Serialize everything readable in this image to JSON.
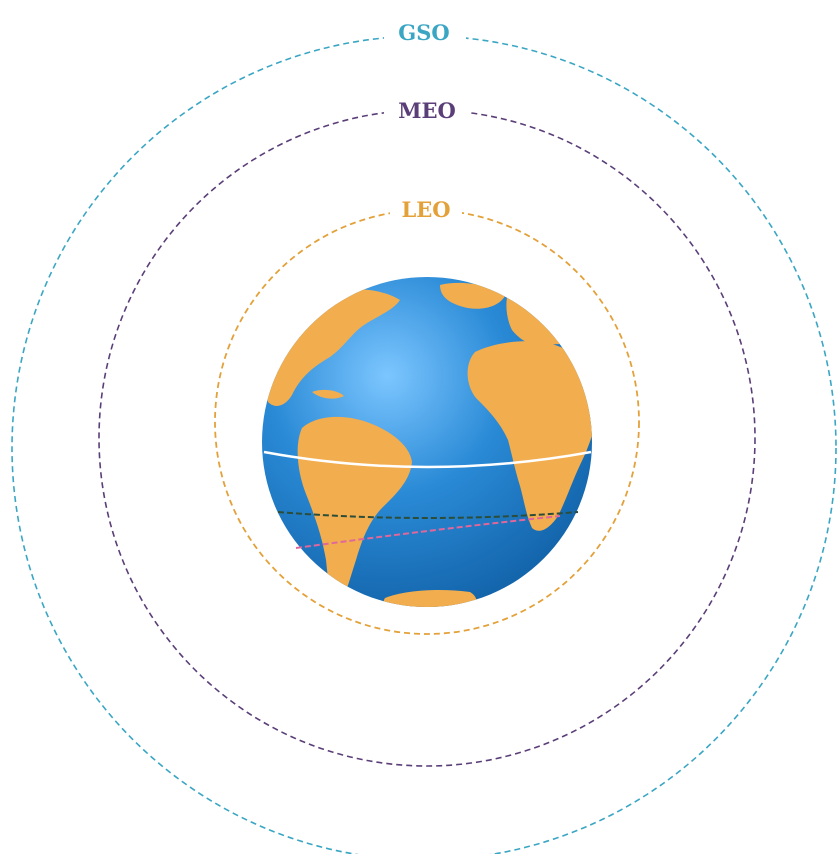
{
  "orbits": [
    {
      "key": "gso",
      "label": "GSO",
      "color": "#3aa6c4"
    },
    {
      "key": "meo",
      "label": "MEO",
      "color": "#5a3e78"
    },
    {
      "key": "leo",
      "label": "LEO",
      "color": "#e3a13a"
    }
  ],
  "earth": {
    "ocean_color": "#1f7fc2",
    "land_color": "#f2ad4e",
    "equator_color": "#ffffff"
  },
  "latitude_lines": [
    {
      "key": "dark",
      "color": "#2c4d3a"
    },
    {
      "key": "pink",
      "color": "#e0679b"
    }
  ]
}
